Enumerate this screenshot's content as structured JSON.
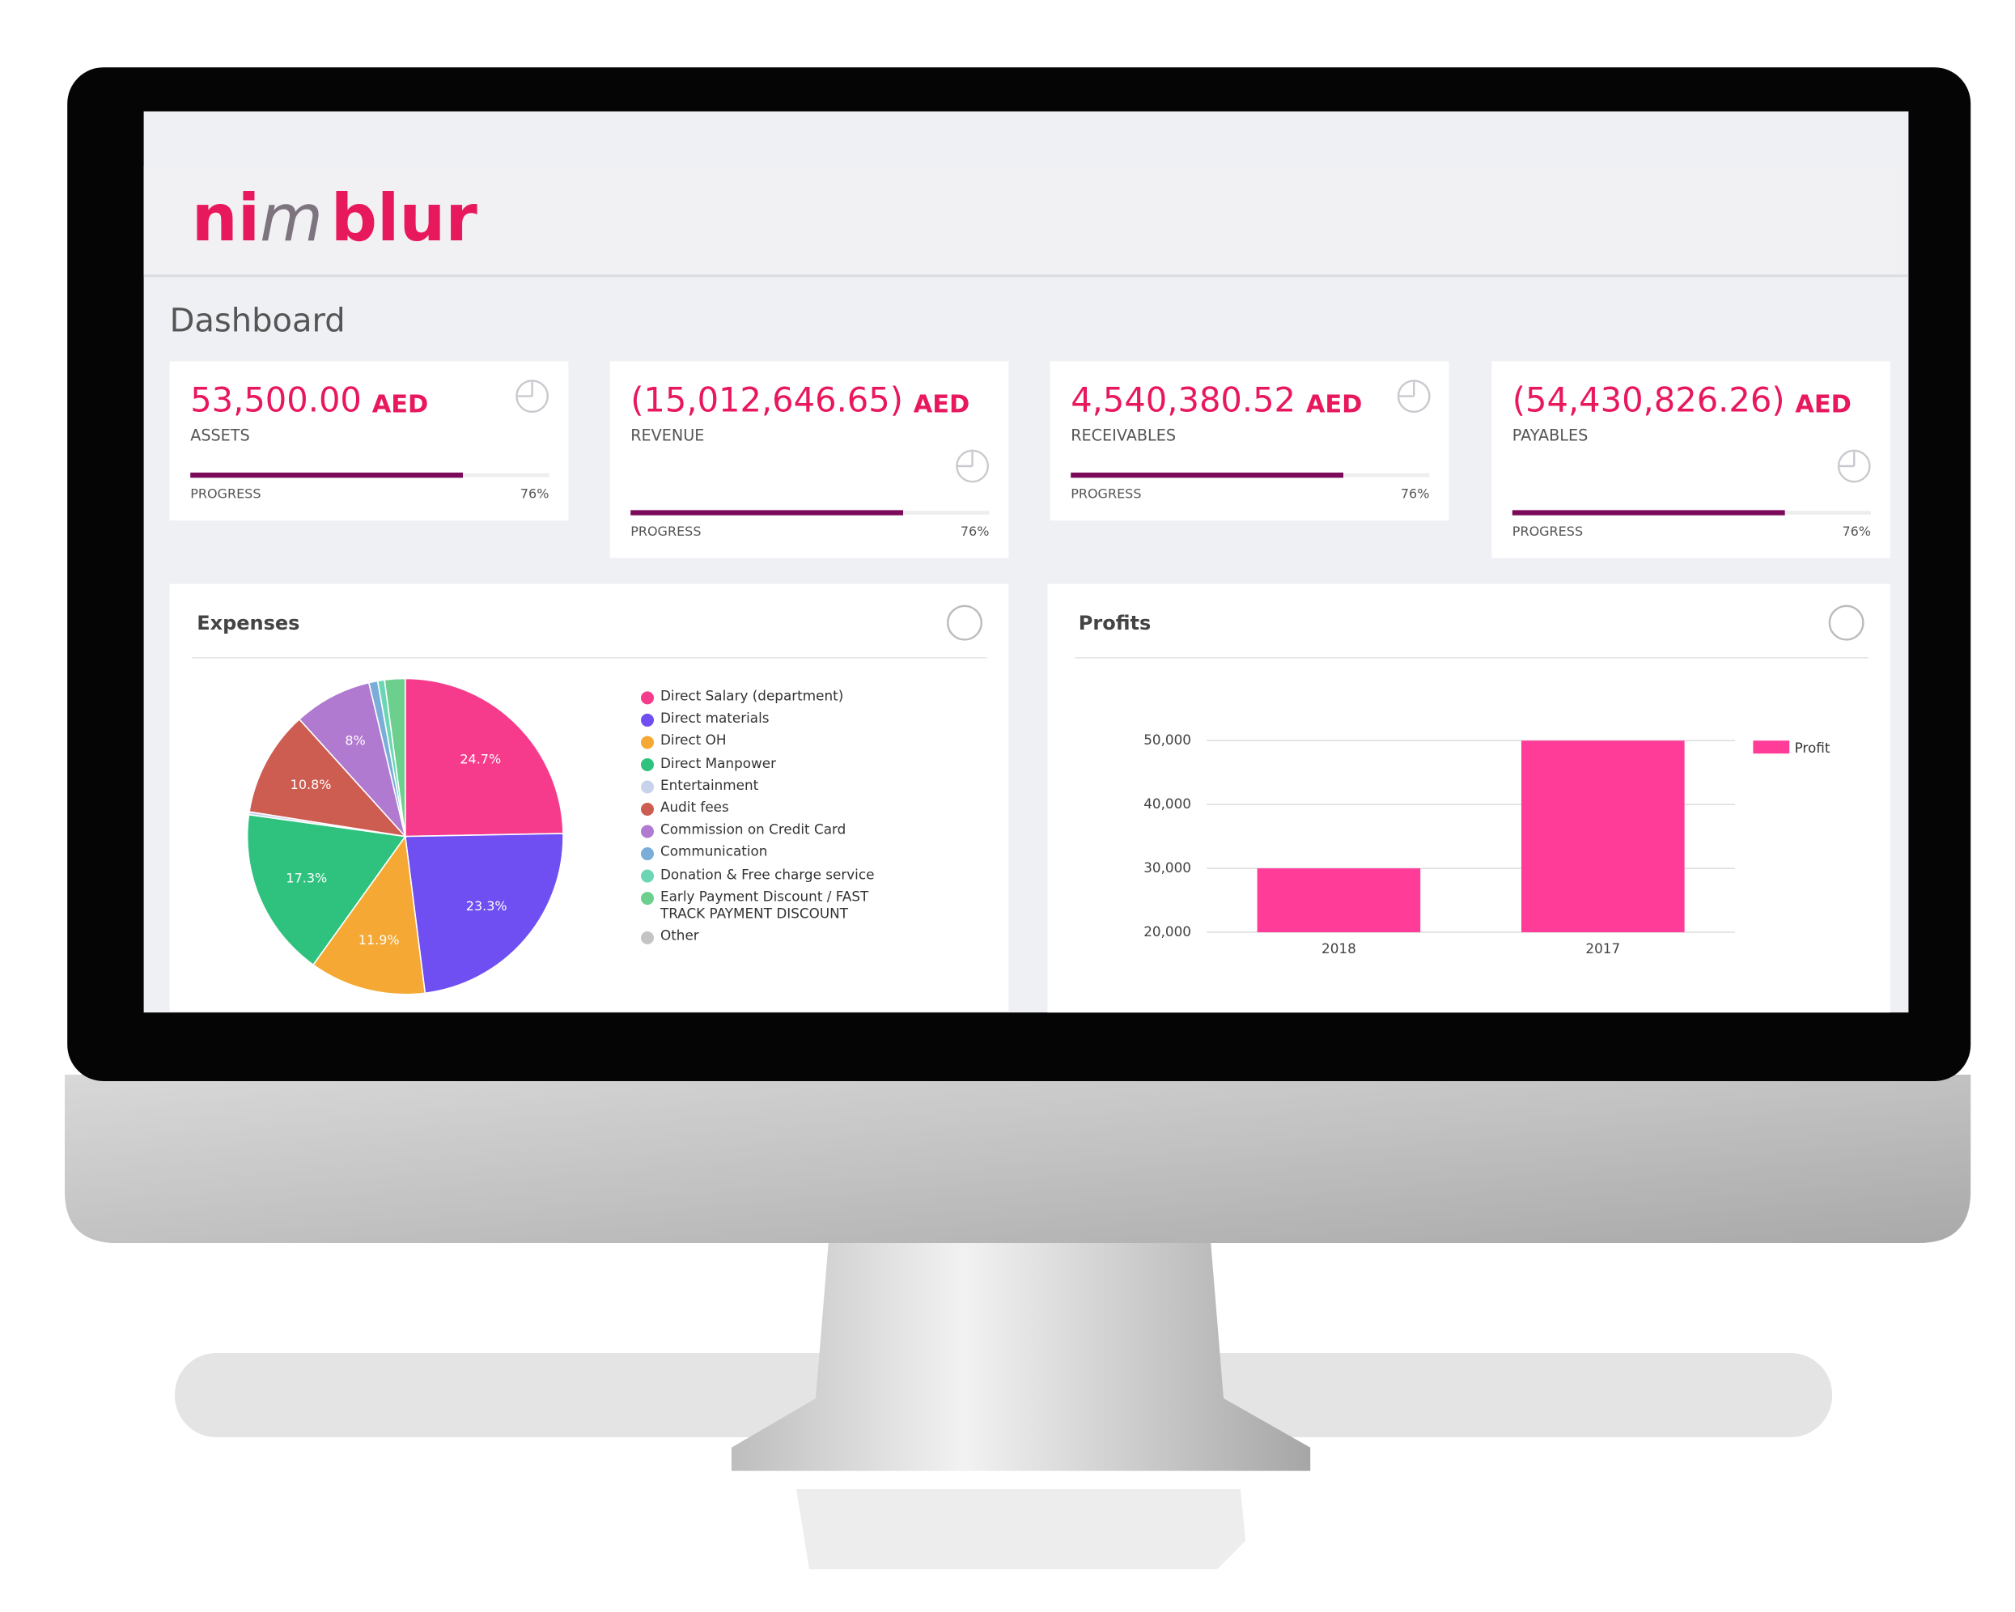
{
  "header": {
    "logo_parts": [
      "ni",
      "m",
      "blur"
    ]
  },
  "page_title": "Dashboard",
  "cards": [
    {
      "amount": "53,500.00",
      "currency": "AED",
      "label": "ASSETS",
      "progress_label": "PROGRESS",
      "progress": {
        "value": 76,
        "label": "76%"
      }
    },
    {
      "amount": "(15,012,646.65)",
      "currency": "AED",
      "label": "REVENUE",
      "progress_label": "PROGRESS",
      "progress": {
        "value": 76,
        "label": "76%"
      }
    },
    {
      "amount": "4,540,380.52",
      "currency": "AED",
      "label": "RECEIVABLES",
      "progress_label": "PROGRESS",
      "progress": {
        "value": 76,
        "label": "76%"
      }
    },
    {
      "amount": "(54,430,826.26)",
      "currency": "AED",
      "label": "PAYABLES",
      "progress_label": "PROGRESS",
      "progress": {
        "value": 76,
        "label": "76%"
      }
    }
  ],
  "expenses": {
    "type": "pie",
    "title": "Expenses",
    "categories": [
      "Direct Salary (department)",
      "Direct materials",
      "Direct OH",
      "Direct Manpower",
      "Entertainment",
      "Audit fees",
      "Commission on Credit Card",
      "Communication",
      "Donation & Free charge service",
      "Early Payment Discount / FAST TRACK PAYMENT DISCOUNT",
      "Other"
    ],
    "values": [
      24.7,
      23.3,
      11.9,
      17.3,
      0.3,
      10.8,
      8,
      0.9,
      0.7,
      2.1,
      0
    ],
    "value_labels": [
      "24.7%",
      "23.3%",
      "11.9%",
      "17.3%",
      null,
      "10.8%",
      "8%",
      null,
      null,
      null,
      null
    ],
    "colors": [
      "#f63a8c",
      "#6f4ff2",
      "#f5a833",
      "#2ec27e",
      "#c8d2ea",
      "#cd5c51",
      "#b07ad0",
      "#7aaed8",
      "#6cd6b4",
      "#6ccf8e",
      "#c4c4c4"
    ]
  },
  "profits": {
    "type": "bar",
    "title": "Profits",
    "categories": [
      "2018",
      "2017"
    ],
    "series": [
      {
        "name": "Profit",
        "color": "#ff3c97",
        "values": [
          30000,
          50000
        ]
      }
    ],
    "ylim": [
      20000,
      50000
    ],
    "yticks": [
      {
        "value": 20000,
        "label": "20,000"
      },
      {
        "value": 30000,
        "label": "30,000"
      },
      {
        "value": 40000,
        "label": "40,000"
      },
      {
        "value": 50000,
        "label": "50,000"
      }
    ],
    "grid": true
  }
}
